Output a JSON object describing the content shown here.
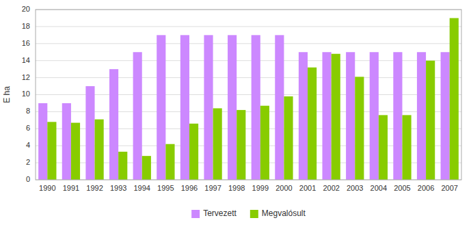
{
  "chart_data": {
    "type": "bar",
    "categories": [
      "1990",
      "1991",
      "1992",
      "1993",
      "1994",
      "1995",
      "1996",
      "1997",
      "1998",
      "1999",
      "2000",
      "2001",
      "2002",
      "2003",
      "2004",
      "2005",
      "2006",
      "2007"
    ],
    "series": [
      {
        "name": "Tervezett",
        "color": "#CC88FF",
        "values": [
          9,
          9,
          11,
          13,
          15,
          17,
          17,
          17,
          17,
          17,
          17,
          15,
          15,
          15,
          15,
          15,
          15,
          15
        ]
      },
      {
        "name": "Megvalósult",
        "color": "#88CC00",
        "values": [
          6.8,
          6.7,
          7.1,
          3.3,
          2.8,
          4.2,
          6.6,
          8.4,
          8.2,
          8.7,
          9.8,
          13.2,
          14.8,
          12.1,
          7.6,
          7.6,
          14.0,
          19.0
        ]
      }
    ],
    "ylabel": "E ha",
    "ylim": [
      0,
      20
    ],
    "yticks": [
      0,
      2,
      4,
      6,
      8,
      10,
      12,
      14,
      16,
      18,
      20
    ],
    "grid": true,
    "legend": "bottom"
  }
}
